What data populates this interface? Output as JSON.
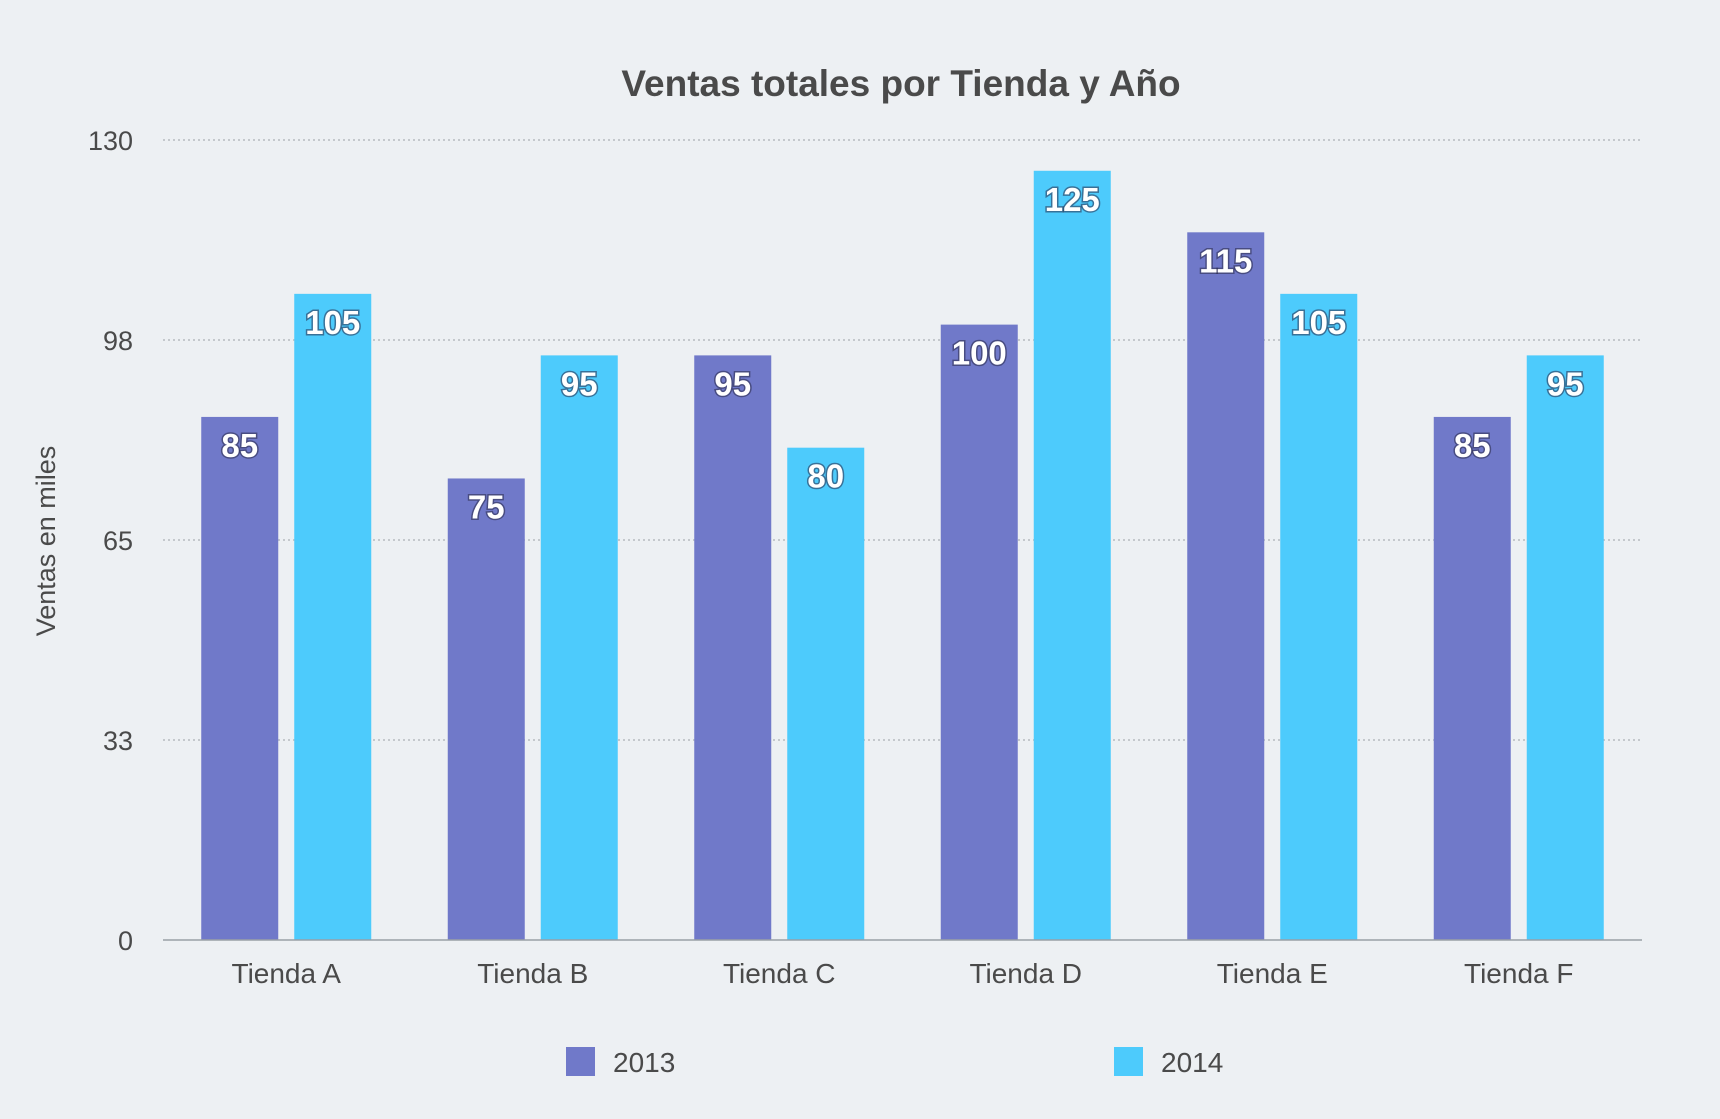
{
  "chart_data": {
    "type": "bar",
    "title": "Ventas totales por Tienda y Año",
    "ylabel": "Ventas en miles",
    "xlabel": "",
    "ylim": [
      0,
      130
    ],
    "yticks": [
      "0",
      "33",
      "65",
      "98",
      "130"
    ],
    "ytick_values": [
      0,
      32.5,
      65,
      97.5,
      130
    ],
    "grid": true,
    "legend_position": "bottom",
    "categories": [
      "Tienda A",
      "Tienda B",
      "Tienda C",
      "Tienda D",
      "Tienda E",
      "Tienda F"
    ],
    "series": [
      {
        "name": "2013",
        "color": "#7079c9",
        "values": [
          85,
          75,
          95,
          100,
          115,
          85
        ]
      },
      {
        "name": "2014",
        "color": "#4dcbfc",
        "values": [
          105,
          95,
          80,
          125,
          105,
          95
        ]
      }
    ]
  }
}
